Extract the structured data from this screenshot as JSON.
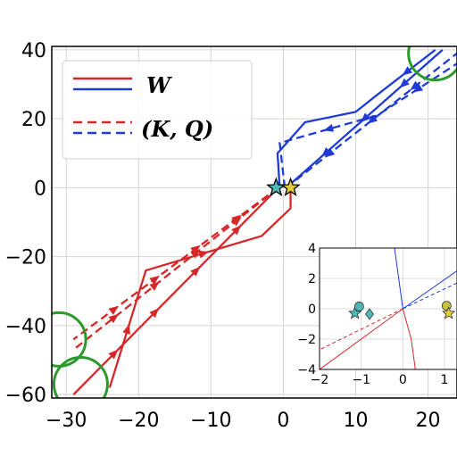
{
  "chart_data": {
    "type": "line",
    "xlim": [
      -32,
      24
    ],
    "ylim": [
      -61,
      41
    ],
    "xticks": [
      -30,
      -20,
      -10,
      0,
      10,
      20
    ],
    "yticks": [
      -60,
      -40,
      -20,
      0,
      20,
      40
    ],
    "xtick_labels": [
      "−30",
      "−20",
      "−10",
      "0",
      "10",
      "20"
    ],
    "ytick_labels": [
      "−60",
      "−40",
      "−20",
      "0",
      "20",
      "40"
    ],
    "grid": true,
    "legend_position": "top-left",
    "legend": [
      {
        "label": "W",
        "style": "solid"
      },
      {
        "label": "(K, Q)",
        "style": "dashed"
      }
    ],
    "series": [
      {
        "color": "#d62728",
        "style": "solid",
        "points": [
          [
            -0.7,
            0
          ],
          [
            -29,
            -60
          ]
        ]
      },
      {
        "color": "#d62728",
        "style": "solid",
        "points": [
          [
            1,
            -1
          ],
          [
            1,
            -6
          ],
          [
            -3,
            -14
          ],
          [
            -19,
            -24
          ],
          [
            -24,
            -58
          ]
        ]
      },
      {
        "color": "#d62728",
        "style": "dashed",
        "points": [
          [
            -0.7,
            0
          ],
          [
            -29,
            -44
          ]
        ]
      },
      {
        "color": "#d62728",
        "style": "dashed",
        "points": [
          [
            -0.7,
            0
          ],
          [
            -29,
            -47
          ]
        ]
      },
      {
        "color": "#1f3bd6",
        "style": "solid",
        "points": [
          [
            0.4,
            0
          ],
          [
            22,
            40
          ]
        ]
      },
      {
        "color": "#1f3bd6",
        "style": "solid",
        "points": [
          [
            -0.5,
            0
          ],
          [
            -0.8,
            10
          ],
          [
            3,
            19
          ],
          [
            10,
            22
          ],
          [
            13,
            27
          ],
          [
            21,
            40
          ]
        ]
      },
      {
        "color": "#1f3bd6",
        "style": "dashed",
        "points": [
          [
            0.4,
            0
          ],
          [
            24,
            39
          ]
        ]
      },
      {
        "color": "#1f3bd6",
        "style": "dashed",
        "points": [
          [
            0.2,
            0
          ],
          [
            -0.5,
            13
          ],
          [
            13,
            21
          ],
          [
            24,
            36
          ]
        ]
      }
    ],
    "markers": [
      {
        "type": "star",
        "x": -1,
        "y": 0,
        "color": "#4fb7b8"
      },
      {
        "type": "star",
        "x": 1,
        "y": 0,
        "color": "#e2cc3d"
      }
    ],
    "annotations": [
      {
        "type": "circle",
        "x": 21,
        "y": 39,
        "color": "#2a9a2a"
      },
      {
        "type": "circle",
        "x": -31,
        "y": -44,
        "color": "#2a9a2a"
      },
      {
        "type": "circle",
        "x": -28,
        "y": -57,
        "color": "#2a9a2a"
      }
    ],
    "inset": {
      "xlim": [
        -2,
        1.3
      ],
      "ylim": [
        -4,
        4
      ],
      "xticks": [
        -2,
        -1,
        0,
        1
      ],
      "yticks": [
        -4,
        -2,
        0,
        2,
        4
      ],
      "xtick_labels": [
        "−2",
        "−1",
        "0",
        "1"
      ],
      "ytick_labels": [
        "−4",
        "−2",
        "0",
        "2",
        "4"
      ],
      "lines": [
        {
          "color": "#d62728",
          "style": "solid",
          "points": [
            [
              0,
              0
            ],
            [
              -2,
              -4
            ]
          ]
        },
        {
          "color": "#d62728",
          "style": "dashed",
          "points": [
            [
              0,
              0
            ],
            [
              -2,
              -2.7
            ]
          ]
        },
        {
          "color": "#1f3bd6",
          "style": "solid",
          "points": [
            [
              0,
              0
            ],
            [
              1.3,
              2.5
            ]
          ]
        },
        {
          "color": "#1f3bd6",
          "style": "dashed",
          "points": [
            [
              0,
              0
            ],
            [
              1.3,
              1.7
            ]
          ]
        },
        {
          "color": "#1f3bd6",
          "style": "solid",
          "points": [
            [
              -0.2,
              4
            ],
            [
              -0.1,
              2
            ],
            [
              0,
              0
            ]
          ]
        },
        {
          "color": "#d62728",
          "style": "solid",
          "points": [
            [
              0,
              0
            ],
            [
              0.2,
              -2
            ],
            [
              0.3,
              -4
            ]
          ]
        }
      ],
      "markers": [
        {
          "type": "star",
          "x": -1.15,
          "y": -0.3,
          "color": "#4fb7b8"
        },
        {
          "type": "circle",
          "x": -1.05,
          "y": 0.15,
          "color": "#4fb7b8"
        },
        {
          "type": "diamond",
          "x": -0.8,
          "y": -0.35,
          "color": "#4fb7b8"
        },
        {
          "type": "circle",
          "x": 1.05,
          "y": 0.2,
          "color": "#c8c341"
        },
        {
          "type": "star",
          "x": 1.1,
          "y": -0.3,
          "color": "#e2cc3d"
        }
      ]
    }
  }
}
